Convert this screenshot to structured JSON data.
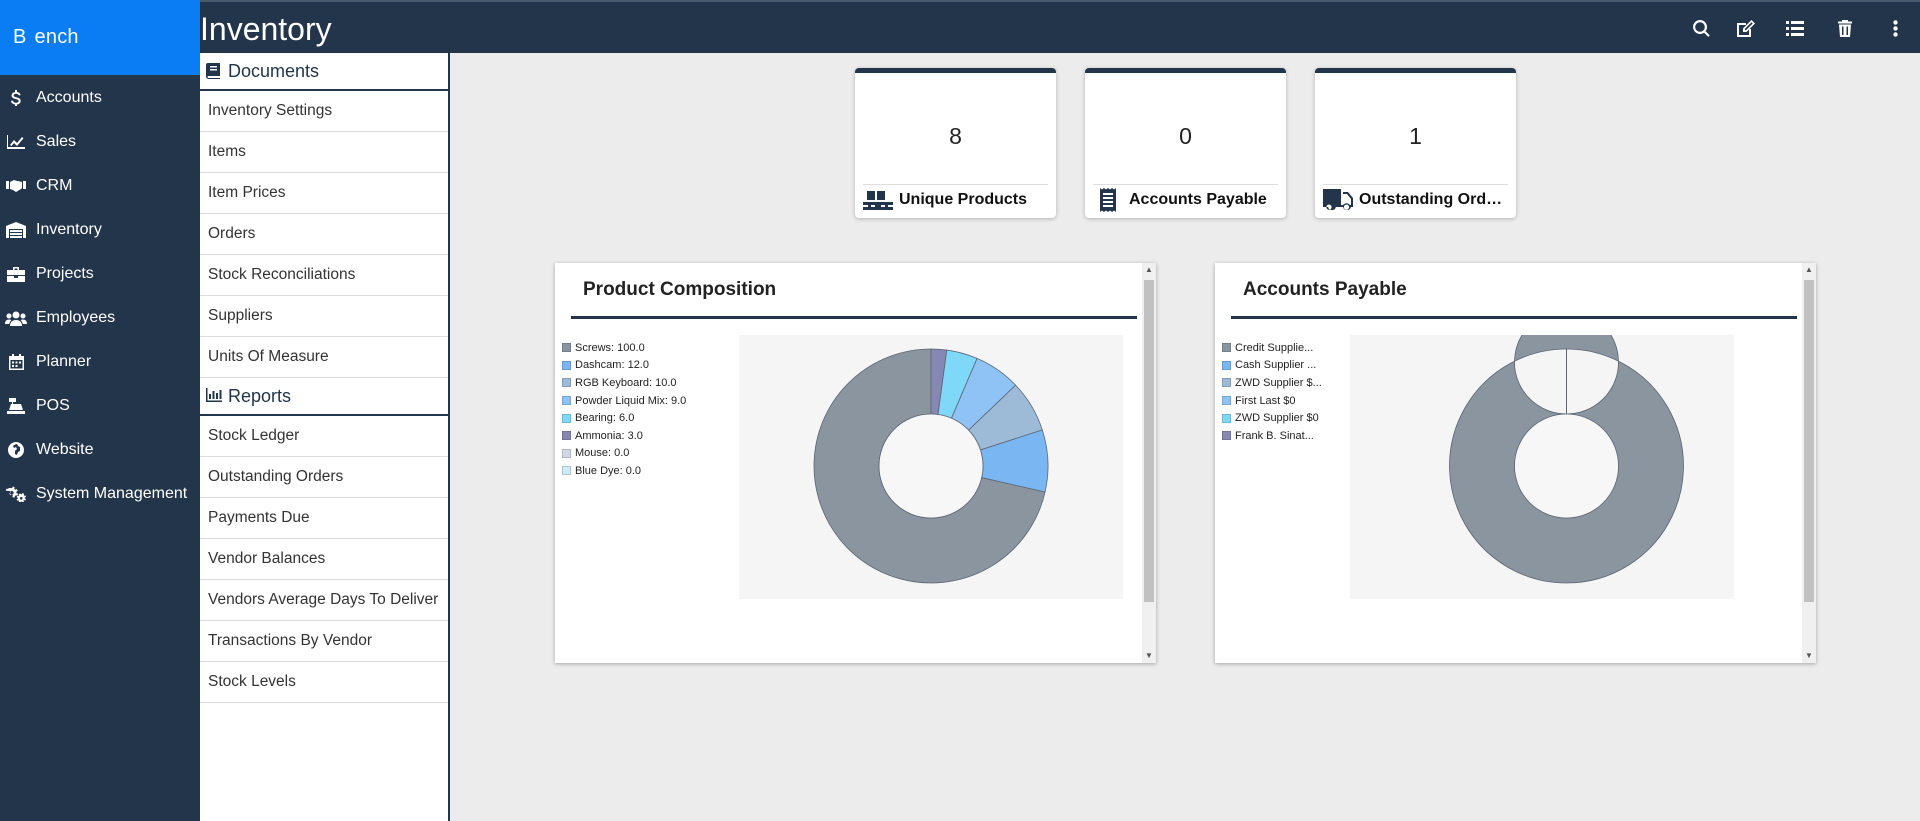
{
  "app": {
    "brand_letter": "B",
    "brand_rest": "ench"
  },
  "nav": {
    "items": [
      {
        "label": "Accounts",
        "icon": "dollar-icon"
      },
      {
        "label": "Sales",
        "icon": "chart-line-icon"
      },
      {
        "label": "CRM",
        "icon": "handshake-icon"
      },
      {
        "label": "Inventory",
        "icon": "warehouse-icon"
      },
      {
        "label": "Projects",
        "icon": "briefcase-icon"
      },
      {
        "label": "Employees",
        "icon": "users-icon"
      },
      {
        "label": "Planner",
        "icon": "calendar-icon"
      },
      {
        "label": "POS",
        "icon": "cash-register-icon"
      },
      {
        "label": "Website",
        "icon": "globe-icon"
      },
      {
        "label": "System Management",
        "icon": "cogs-icon"
      }
    ]
  },
  "header": {
    "title": "Inventory",
    "actions": [
      "search-icon",
      "edit-icon",
      "list-icon",
      "trash-icon",
      "more-vertical-icon"
    ]
  },
  "documents": {
    "heading": "Documents",
    "items": [
      "Inventory Settings",
      "Items",
      "Item Prices",
      "Orders",
      "Stock Reconciliations",
      "Suppliers",
      "Units Of Measure"
    ]
  },
  "reports": {
    "heading": "Reports",
    "items": [
      "Stock Ledger",
      "Outstanding Orders",
      "Payments Due",
      "Vendor Balances",
      "Vendors Average Days To Deliver",
      "Transactions By Vendor",
      "Stock Levels"
    ]
  },
  "kpis": [
    {
      "value": "8",
      "label": "Unique Products",
      "icon": "pallet-boxes-icon"
    },
    {
      "value": "0",
      "label": "Accounts Payable",
      "icon": "receipt-icon"
    },
    {
      "value": "1",
      "label": "Outstanding Orders",
      "icon": "truck-icon"
    }
  ],
  "chart_data": [
    {
      "type": "pie",
      "style": "donut",
      "title": "Product Composition",
      "legend_position": "left",
      "series": [
        {
          "label": "Screws: 100.0",
          "value": 100.0,
          "color": "#8a959f"
        },
        {
          "label": "Dashcam: 12.0",
          "value": 12.0,
          "color": "#7ab6f2"
        },
        {
          "label": "RGB Keyboard: 10.0",
          "value": 10.0,
          "color": "#9dbad6"
        },
        {
          "label": "Powder Liquid Mix: 9.0",
          "value": 9.0,
          "color": "#8fc3f5"
        },
        {
          "label": "Bearing: 6.0",
          "value": 6.0,
          "color": "#7fd8f7"
        },
        {
          "label": "Ammonia: 3.0",
          "value": 3.0,
          "color": "#8787b3"
        },
        {
          "label": "Mouse: 0.0",
          "value": 0.0,
          "color": "#d2d8e3"
        },
        {
          "label": "Blue Dye: 0.0",
          "value": 0.0,
          "color": "#cfeaf8"
        }
      ]
    },
    {
      "type": "pie",
      "style": "donut",
      "title": "Accounts Payable",
      "legend_position": "left",
      "series": [
        {
          "label": "Credit Supplie...",
          "value": 1,
          "color": "#8a959f"
        },
        {
          "label": "Cash Supplier ...",
          "value": 0,
          "color": "#7ab6f2"
        },
        {
          "label": "ZWD Supplier $...",
          "value": 0,
          "color": "#9dbad6"
        },
        {
          "label": "First Last $0",
          "value": 0,
          "color": "#8fc3f5"
        },
        {
          "label": "ZWD Supplier $0",
          "value": 0,
          "color": "#7fd8f7"
        },
        {
          "label": "Frank B. Sinat...",
          "value": 0,
          "color": "#8787b3"
        }
      ]
    }
  ]
}
